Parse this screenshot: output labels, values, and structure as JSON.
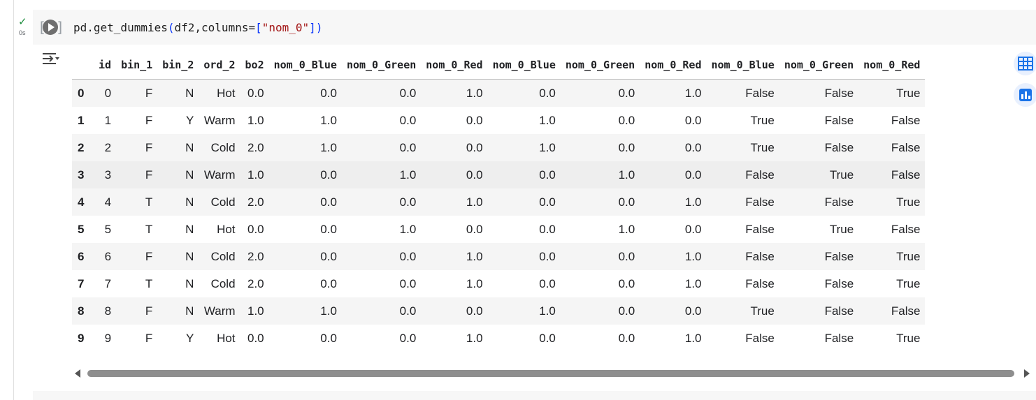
{
  "cell": {
    "status_icon": "check-icon",
    "exec_time": "0s",
    "run_icon": "play-icon",
    "code_prefix": "pd.get_dummies",
    "code_paren_open": "(",
    "code_args": "df2,columns=",
    "code_bracket_open": "[",
    "code_string": "\"nom_0\"",
    "code_bracket_close": "]",
    "code_paren_close": ")"
  },
  "output": {
    "toggle_icon": "output-collapse-icon",
    "columns": [
      "",
      "id",
      "bin_1",
      "bin_2",
      "ord_2",
      "bo2",
      "nom_0_Blue",
      "nom_0_Green",
      "nom_0_Red",
      "nom_0_Blue",
      "nom_0_Green",
      "nom_0_Red",
      "nom_0_Blue",
      "nom_0_Green",
      "nom_0_Red"
    ],
    "rows": [
      [
        "0",
        "0",
        "F",
        "N",
        "Hot",
        "0.0",
        "0.0",
        "0.0",
        "1.0",
        "0.0",
        "0.0",
        "1.0",
        "False",
        "False",
        "True"
      ],
      [
        "1",
        "1",
        "F",
        "Y",
        "Warm",
        "1.0",
        "1.0",
        "0.0",
        "0.0",
        "1.0",
        "0.0",
        "0.0",
        "True",
        "False",
        "False"
      ],
      [
        "2",
        "2",
        "F",
        "N",
        "Cold",
        "2.0",
        "1.0",
        "0.0",
        "0.0",
        "1.0",
        "0.0",
        "0.0",
        "True",
        "False",
        "False"
      ],
      [
        "3",
        "3",
        "F",
        "N",
        "Warm",
        "1.0",
        "0.0",
        "1.0",
        "0.0",
        "0.0",
        "1.0",
        "0.0",
        "False",
        "True",
        "False"
      ],
      [
        "4",
        "4",
        "T",
        "N",
        "Cold",
        "2.0",
        "0.0",
        "0.0",
        "1.0",
        "0.0",
        "0.0",
        "1.0",
        "False",
        "False",
        "True"
      ],
      [
        "5",
        "5",
        "T",
        "N",
        "Hot",
        "0.0",
        "0.0",
        "1.0",
        "0.0",
        "0.0",
        "1.0",
        "0.0",
        "False",
        "True",
        "False"
      ],
      [
        "6",
        "6",
        "F",
        "N",
        "Cold",
        "2.0",
        "0.0",
        "0.0",
        "1.0",
        "0.0",
        "0.0",
        "1.0",
        "False",
        "False",
        "True"
      ],
      [
        "7",
        "7",
        "T",
        "N",
        "Cold",
        "2.0",
        "0.0",
        "0.0",
        "1.0",
        "0.0",
        "0.0",
        "1.0",
        "False",
        "False",
        "True"
      ],
      [
        "8",
        "8",
        "F",
        "N",
        "Warm",
        "1.0",
        "1.0",
        "0.0",
        "0.0",
        "1.0",
        "0.0",
        "0.0",
        "True",
        "False",
        "False"
      ],
      [
        "9",
        "9",
        "F",
        "Y",
        "Hot",
        "0.0",
        "0.0",
        "0.0",
        "1.0",
        "0.0",
        "0.0",
        "1.0",
        "False",
        "False",
        "True"
      ]
    ],
    "highlighted_row": 3,
    "side_buttons": [
      "table-view-icon",
      "chart-suggestion-icon"
    ],
    "accent_color": "#1a73e8"
  }
}
